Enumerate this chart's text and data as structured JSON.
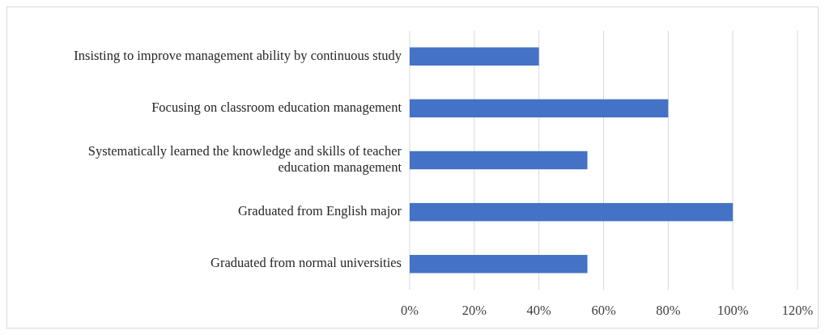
{
  "chart_data": {
    "type": "bar",
    "orientation": "horizontal",
    "categories": [
      "Insisting to improve management ability by continuous study",
      "Focusing on classroom education management",
      "Systematically learned the knowledge and skills of teacher education management",
      "Graduated from English major",
      "Graduated from normal universities"
    ],
    "values": [
      40,
      80,
      55,
      100,
      55
    ],
    "color": "#4472c4",
    "xlim": [
      0,
      120
    ],
    "xticks": [
      {
        "value": 0,
        "label": "0%"
      },
      {
        "value": 20,
        "label": "20%"
      },
      {
        "value": 40,
        "label": "40%"
      },
      {
        "value": 60,
        "label": "60%"
      },
      {
        "value": 80,
        "label": "80%"
      },
      {
        "value": 100,
        "label": "100%"
      },
      {
        "value": 120,
        "label": "120%"
      }
    ],
    "grid": "x"
  }
}
